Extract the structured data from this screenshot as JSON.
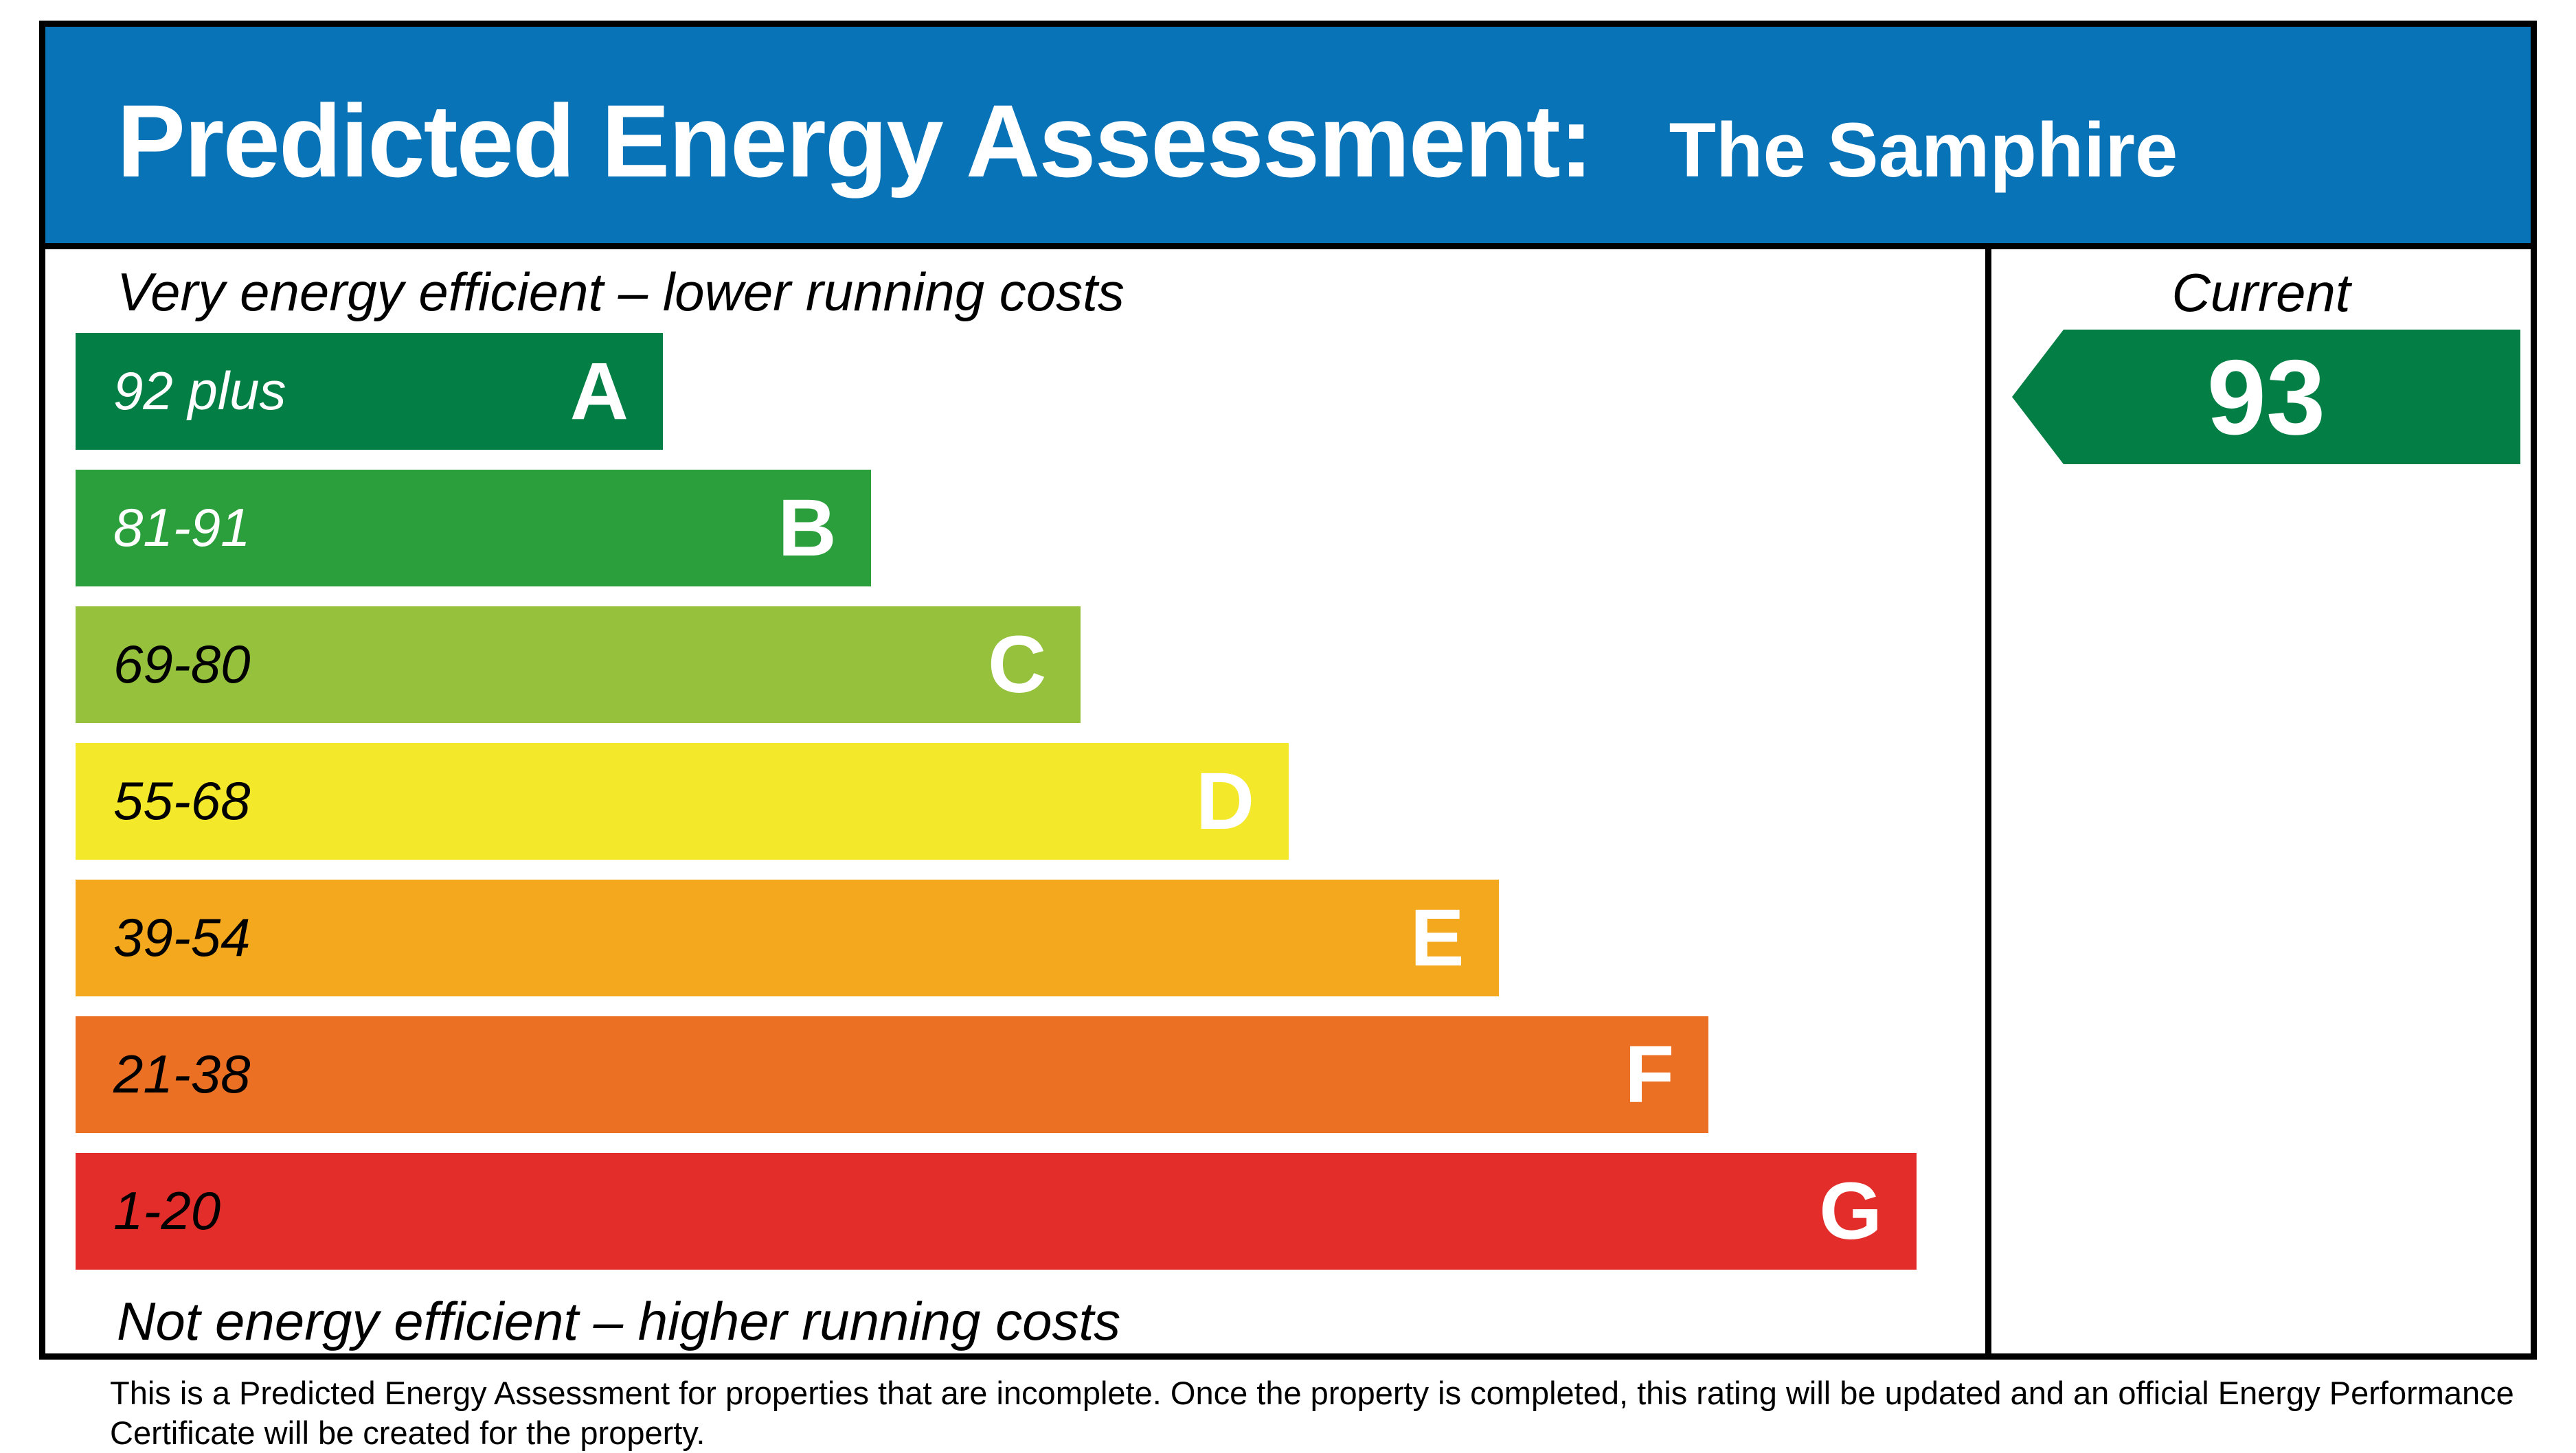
{
  "header": {
    "title": "Predicted Energy Assessment:",
    "property_name": "The Samphire",
    "background_color": "#0973b7",
    "text_color": "#ffffff"
  },
  "notes": {
    "top": "Very energy efficient – lower running costs",
    "bottom": "Not energy efficient – higher running costs"
  },
  "current": {
    "label": "Current",
    "value": "93",
    "arrow_color": "#037f45",
    "text_color": "#ffffff"
  },
  "chart_data": {
    "type": "bar",
    "title": "Predicted Energy Assessment: The Samphire",
    "categories": [
      "A",
      "B",
      "C",
      "D",
      "E",
      "F",
      "G"
    ],
    "bands": [
      {
        "letter": "A",
        "range": "92 plus",
        "color": "#037f45",
        "range_text_color": "#ffffff",
        "letter_color": "#ffffff",
        "width_pct": 31.9
      },
      {
        "letter": "B",
        "range": "81-91",
        "color": "#2c9f3d",
        "range_text_color": "#ffffff",
        "letter_color": "#ffffff",
        "width_pct": 43.2
      },
      {
        "letter": "C",
        "range": "69-80",
        "color": "#95c13c",
        "range_text_color": "#000000",
        "letter_color": "#ffffff",
        "width_pct": 54.6
      },
      {
        "letter": "D",
        "range": "55-68",
        "color": "#f4e82a",
        "range_text_color": "#000000",
        "letter_color": "#ffffff",
        "width_pct": 65.9
      },
      {
        "letter": "E",
        "range": "39-54",
        "color": "#f4a81d",
        "range_text_color": "#000000",
        "letter_color": "#ffffff",
        "width_pct": 77.3
      },
      {
        "letter": "F",
        "range": "21-38",
        "color": "#ec7023",
        "range_text_color": "#000000",
        "letter_color": "#ffffff",
        "width_pct": 88.7
      },
      {
        "letter": "G",
        "range": "1-20",
        "color": "#e32d2b",
        "range_text_color": "#000000",
        "letter_color": "#ffffff",
        "width_pct": 100
      }
    ],
    "current_rating": 93,
    "current_band": "A",
    "legend_position": "right-column",
    "xlabel": "",
    "ylabel": ""
  },
  "footer": {
    "lines": [
      "This is a Predicted Energy Assessment for properties that are incomplete. Once the property is completed, this rating will be updated and an official Energy Performance",
      "Certificate will be created for the property."
    ]
  }
}
